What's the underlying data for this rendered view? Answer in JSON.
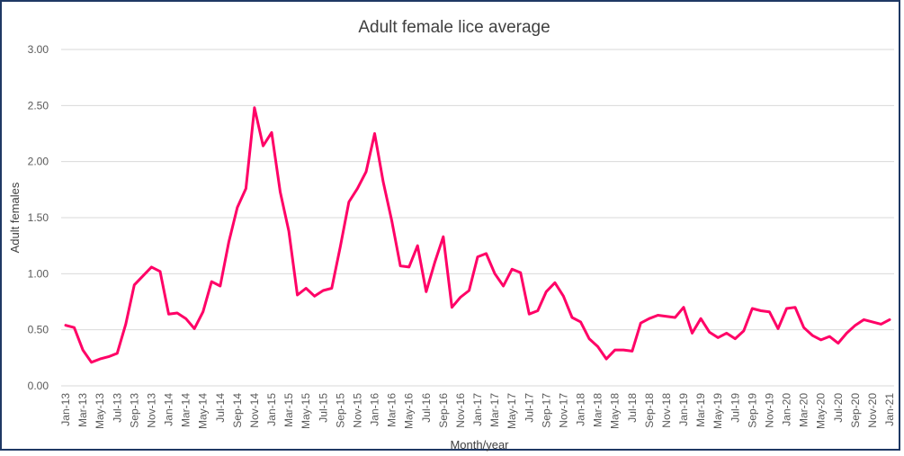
{
  "chart_data": {
    "type": "line",
    "title": "Adult female lice average",
    "xlabel": "Month/year",
    "ylabel": "Adult females",
    "ylim": [
      0,
      3
    ],
    "yticks": [
      "0.00",
      "0.50",
      "1.00",
      "1.50",
      "2.00",
      "2.50",
      "3.00"
    ],
    "grid": true,
    "line_color": "#ff0066",
    "gridline_color": "#d9d9d9",
    "x": [
      "Jan-13",
      "Feb-13",
      "Mar-13",
      "Apr-13",
      "May-13",
      "Jun-13",
      "Jul-13",
      "Aug-13",
      "Sep-13",
      "Oct-13",
      "Nov-13",
      "Dec-13",
      "Jan-14",
      "Feb-14",
      "Mar-14",
      "Apr-14",
      "May-14",
      "Jun-14",
      "Jul-14",
      "Aug-14",
      "Sep-14",
      "Oct-14",
      "Nov-14",
      "Dec-14",
      "Jan-15",
      "Feb-15",
      "Mar-15",
      "Apr-15",
      "May-15",
      "Jun-15",
      "Jul-15",
      "Aug-15",
      "Sep-15",
      "Oct-15",
      "Nov-15",
      "Dec-15",
      "Jan-16",
      "Feb-16",
      "Mar-16",
      "Apr-16",
      "May-16",
      "Jun-16",
      "Jul-16",
      "Aug-16",
      "Sep-16",
      "Oct-16",
      "Nov-16",
      "Dec-16",
      "Jan-17",
      "Feb-17",
      "Mar-17",
      "Apr-17",
      "May-17",
      "Jun-17",
      "Jul-17",
      "Aug-17",
      "Sep-17",
      "Oct-17",
      "Nov-17",
      "Dec-17",
      "Jan-18",
      "Feb-18",
      "Mar-18",
      "Apr-18",
      "May-18",
      "Jun-18",
      "Jul-18",
      "Aug-18",
      "Sep-18",
      "Oct-18",
      "Nov-18",
      "Dec-18",
      "Jan-19",
      "Feb-19",
      "Mar-19",
      "Apr-19",
      "May-19",
      "Jun-19",
      "Jul-19",
      "Aug-19",
      "Sep-19",
      "Oct-19",
      "Nov-19",
      "Dec-19",
      "Jan-20",
      "Feb-20",
      "Mar-20",
      "Apr-20",
      "May-20",
      "Jun-20",
      "Jul-20",
      "Aug-20",
      "Sep-20",
      "Oct-20",
      "Nov-20",
      "Dec-20",
      "Jan-21"
    ],
    "xtick_labels": [
      "Jan-13",
      "Mar-13",
      "May-13",
      "Jul-13",
      "Sep-13",
      "Nov-13",
      "Jan-14",
      "Mar-14",
      "May-14",
      "Jul-14",
      "Sep-14",
      "Nov-14",
      "Jan-15",
      "Mar-15",
      "May-15",
      "Jul-15",
      "Sep-15",
      "Nov-15",
      "Jan-16",
      "Mar-16",
      "May-16",
      "Jul-16",
      "Sep-16",
      "Nov-16",
      "Jan-17",
      "Mar-17",
      "May-17",
      "Jul-17",
      "Sep-17",
      "Nov-17",
      "Jan-18",
      "Mar-18",
      "May-18",
      "Jul-18",
      "Sep-18",
      "Nov-18",
      "Jan-19",
      "Mar-19",
      "May-19",
      "Jul-19",
      "Sep-19",
      "Nov-19",
      "Jan-20",
      "Mar-20",
      "May-20",
      "Jul-20",
      "Sep-20",
      "Nov-20",
      "Jan-21"
    ],
    "series": [
      {
        "values": [
          0.54,
          0.52,
          0.32,
          0.21,
          0.24,
          0.26,
          0.29,
          0.55,
          0.9,
          0.98,
          1.06,
          1.02,
          0.64,
          0.65,
          0.6,
          0.51,
          0.66,
          0.93,
          0.89,
          1.28,
          1.59,
          1.76,
          2.48,
          2.14,
          2.26,
          1.73,
          1.38,
          0.81,
          0.87,
          0.8,
          0.85,
          0.87,
          1.24,
          1.64,
          1.76,
          1.91,
          2.25,
          1.82,
          1.47,
          1.07,
          1.06,
          1.25,
          0.84,
          1.1,
          1.33,
          0.7,
          0.79,
          0.85,
          1.15,
          1.18,
          1.0,
          0.89,
          1.04,
          1.01,
          0.64,
          0.67,
          0.84,
          0.92,
          0.8,
          0.61,
          0.57,
          0.42,
          0.35,
          0.24,
          0.32,
          0.32,
          0.31,
          0.56,
          0.6,
          0.63,
          0.62,
          0.61,
          0.7,
          0.47,
          0.6,
          0.48,
          0.43,
          0.47,
          0.42,
          0.49,
          0.69,
          0.67,
          0.66,
          0.51,
          0.69,
          0.7,
          0.52,
          0.45,
          0.41,
          0.44,
          0.38,
          0.47,
          0.54,
          0.59,
          0.57,
          0.55,
          0.59
        ]
      }
    ]
  }
}
